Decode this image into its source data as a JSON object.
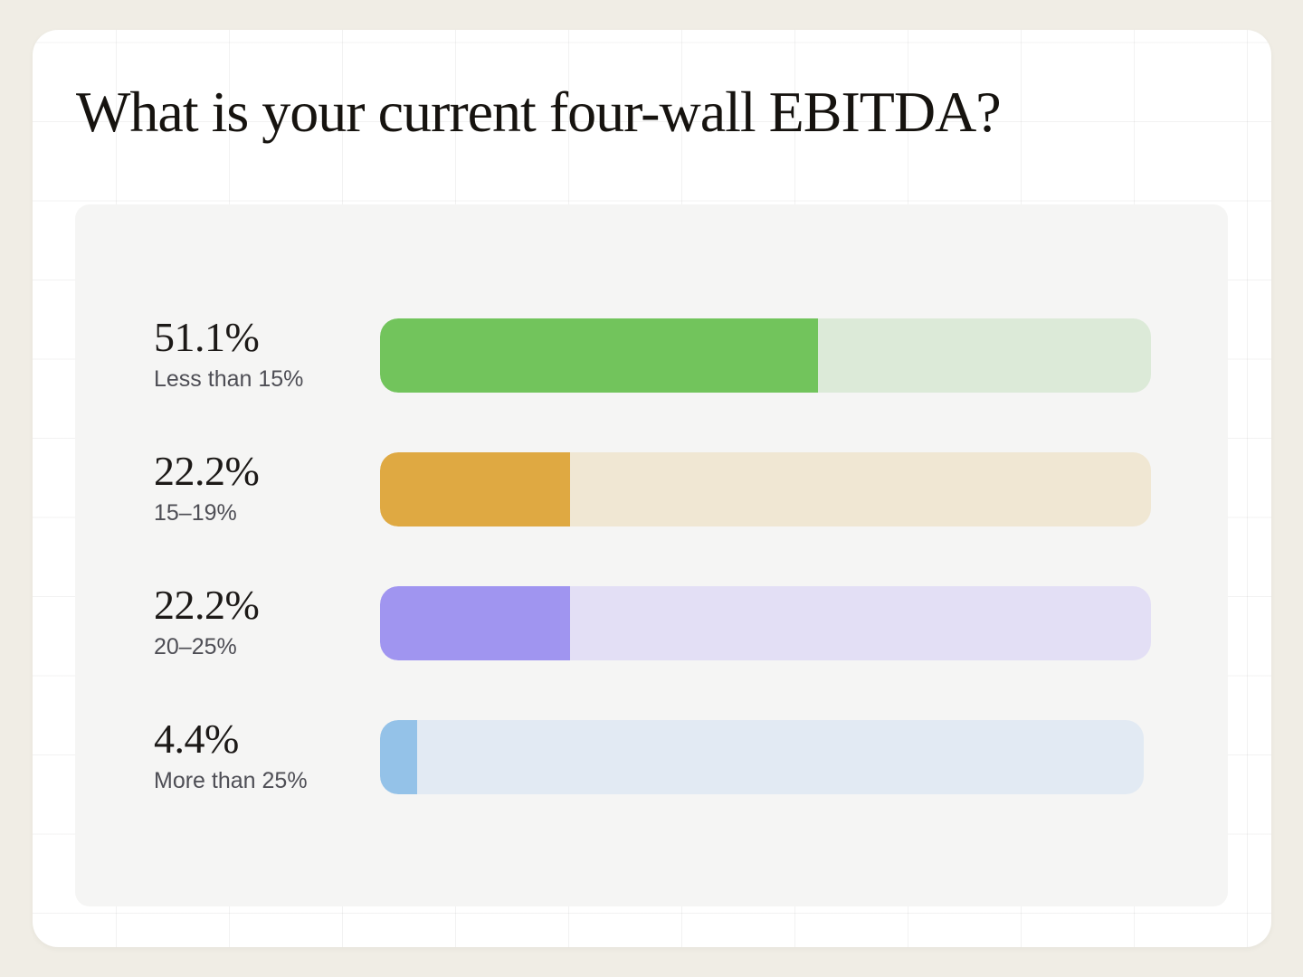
{
  "page": {
    "title": "What is your current four-wall EBITDA?"
  },
  "theme": {
    "page_background": "#f0ede5",
    "card_background": "#ffffff",
    "panel_background": "#f5f5f4",
    "title_color": "#16130f",
    "value_color": "#1c1917",
    "category_color": "#4e4e55"
  },
  "chart_data": {
    "type": "bar",
    "orientation": "horizontal",
    "title": "What is your current four-wall EBITDA?",
    "categories": [
      "Less than 15%",
      "15–19%",
      "20–25%",
      "More than 25%"
    ],
    "values": [
      51.1,
      22.2,
      22.2,
      4.4
    ],
    "value_labels": [
      "51.1%",
      "22.2%",
      "22.2%",
      "4.4%"
    ],
    "xlabel": "",
    "ylabel": "",
    "xlim": [
      0,
      90
    ],
    "grid": false,
    "legend": "none",
    "colors": [
      {
        "name": "green",
        "fill": "#72c45c",
        "track": "#dcead8"
      },
      {
        "name": "amber",
        "fill": "#dfa942",
        "track": "#f0e7d3"
      },
      {
        "name": "purple",
        "fill": "#a095f0",
        "track": "#e3dff5"
      },
      {
        "name": "blue",
        "fill": "#94c2e8",
        "track": "#e2eaf3"
      }
    ]
  }
}
